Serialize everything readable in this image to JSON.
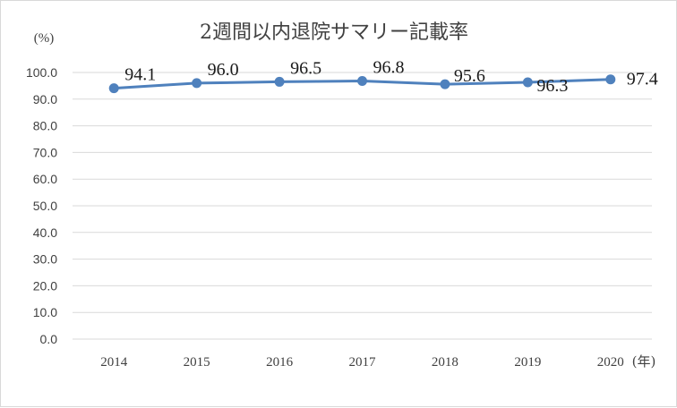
{
  "chart_data": {
    "type": "line",
    "title": "2週間以内退院サマリー記載率",
    "ylabel": "(%)",
    "xlabel": "(年)",
    "categories": [
      "2014",
      "2015",
      "2016",
      "2017",
      "2018",
      "2019",
      "2020"
    ],
    "series": [
      {
        "values": [
          94.1,
          96.0,
          96.5,
          96.8,
          95.6,
          96.3,
          97.4
        ]
      }
    ],
    "data_labels": [
      "94.1",
      "96.0",
      "96.5",
      "96.8",
      "95.6",
      "96.3",
      "97.4"
    ],
    "yticks": [
      "0.0",
      "10.0",
      "20.0",
      "30.0",
      "40.0",
      "50.0",
      "60.0",
      "70.0",
      "80.0",
      "90.0",
      "100.0"
    ],
    "ylim": [
      0,
      100
    ],
    "grid": true,
    "legend": "none",
    "line_color": "#4f81bd",
    "grid_color": "#d9d9d9"
  }
}
